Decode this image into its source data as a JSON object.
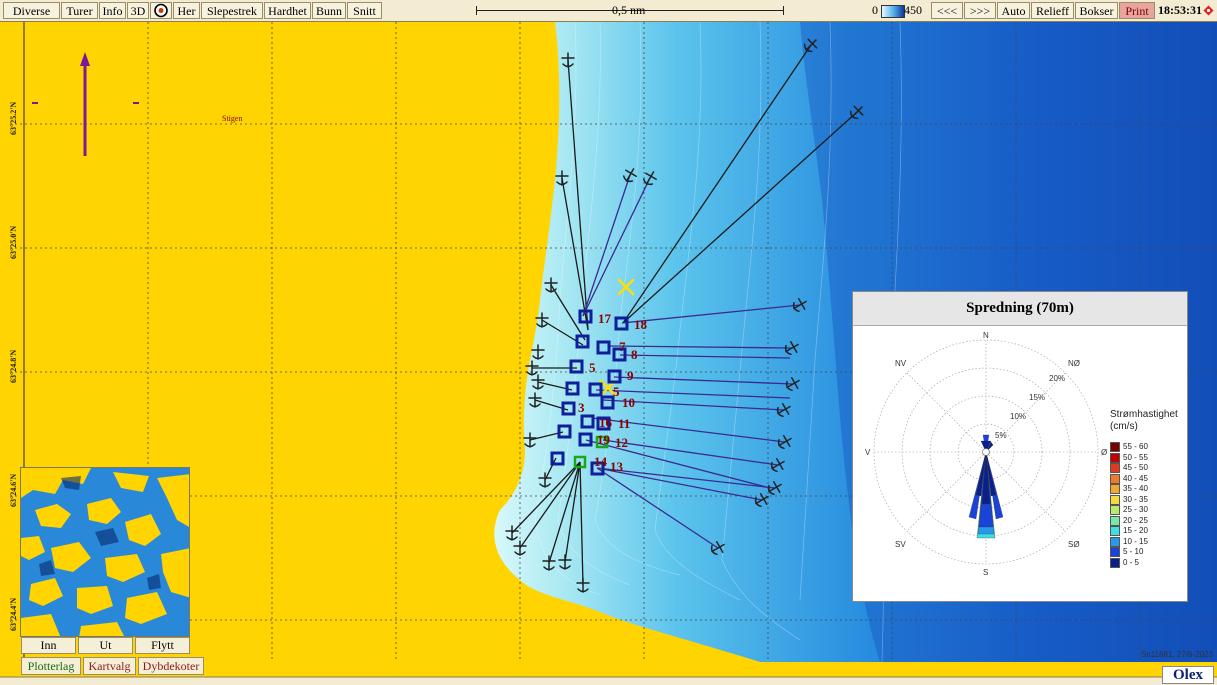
{
  "toolbar": {
    "buttons": [
      "Diverse",
      "Turer",
      "Info",
      "3D",
      "Her",
      "Slepestrek",
      "Hardhet",
      "Bunn",
      "Snitt"
    ],
    "scale_label": "0,5 nm",
    "depth_scale_min": "0",
    "depth_scale_max": "450",
    "right_buttons": [
      "<<<",
      ">>>",
      "Auto",
      "Relieff",
      "Bokser",
      "Print"
    ],
    "clock": "18:53:31"
  },
  "map": {
    "place_label": "Stigen",
    "latitude_labels": [
      "63°25.2'N",
      "63°25.0'N",
      "63°24.8'N",
      "63°24.6'N",
      "63°24.4'N"
    ],
    "station_numbers": [
      "17",
      "18",
      "7",
      "8",
      "5",
      "9",
      "5",
      "10",
      "3",
      "16",
      "11",
      "19",
      "12",
      "14",
      "13"
    ],
    "colors": {
      "land": "#ffd400",
      "shallow": "#c8f4f8",
      "deep": "#1560c8",
      "marker": "#0f1e9a",
      "station_label": "#8b0000"
    }
  },
  "windrose": {
    "title": "Spredning (70m)",
    "directions": [
      "N",
      "NØ",
      "Ø",
      "SØ",
      "S",
      "SV",
      "V",
      "NV"
    ],
    "ring_labels": [
      "5%",
      "10%",
      "15%",
      "20%"
    ],
    "legend_title_line1": "Strømhastighet",
    "legend_title_line2": "(cm/s)",
    "legend": [
      {
        "label": "55 - 60",
        "color": "#7a0000"
      },
      {
        "label": "50 - 55",
        "color": "#c00000"
      },
      {
        "label": "45 - 50",
        "color": "#e03a1c"
      },
      {
        "label": "40 - 45",
        "color": "#f07a2a"
      },
      {
        "label": "35 - 40",
        "color": "#f0a830"
      },
      {
        "label": "30 - 35",
        "color": "#f0dc40"
      },
      {
        "label": "25 - 30",
        "color": "#b6ec6a"
      },
      {
        "label": "20 - 25",
        "color": "#78eaa8"
      },
      {
        "label": "15 - 20",
        "color": "#3ce0e0"
      },
      {
        "label": "10 - 15",
        "color": "#2a98e8"
      },
      {
        "label": "5 - 10",
        "color": "#1a44d8"
      },
      {
        "label": "0 - 5",
        "color": "#0a1f8c"
      }
    ]
  },
  "minimap": {
    "buttons": [
      "Inn",
      "Ut",
      "Flytt"
    ]
  },
  "tabs": [
    "Plotterlag",
    "Kartvalg",
    "Dybdekoter"
  ],
  "footer": {
    "credit": "Sn11681, 27/6-2023",
    "logo": "Olex"
  }
}
